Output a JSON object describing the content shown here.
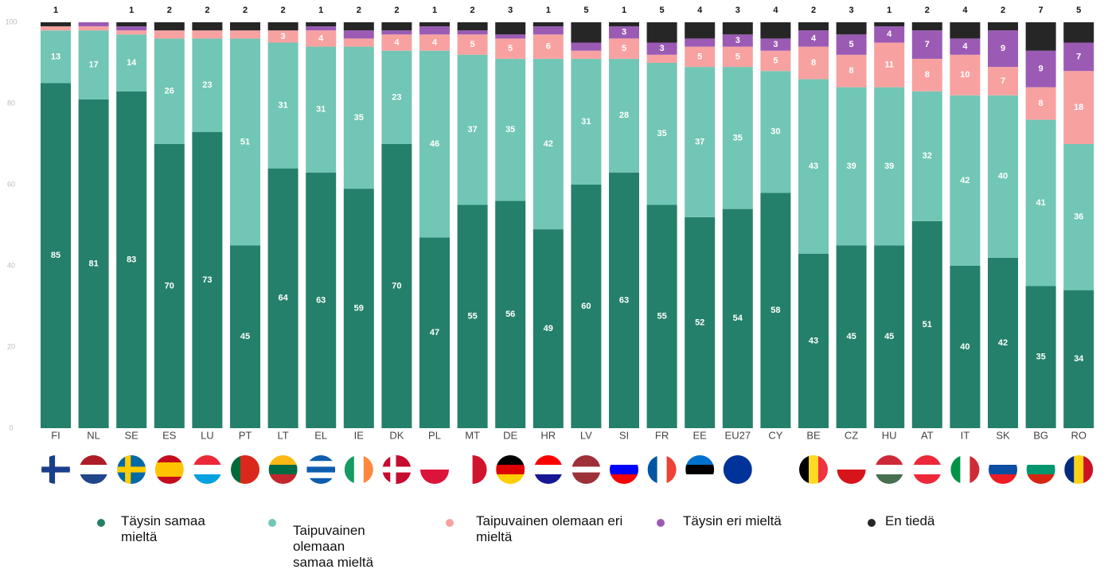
{
  "chart_data": {
    "type": "stacked_bar",
    "categories": [
      "FI",
      "NL",
      "SE",
      "ES",
      "LU",
      "PT",
      "LT",
      "EL",
      "IE",
      "DK",
      "PL",
      "MT",
      "DE",
      "HR",
      "LV",
      "SI",
      "FR",
      "EE",
      "EU27",
      "CY",
      "BE",
      "CZ",
      "HU",
      "AT",
      "IT",
      "SK",
      "BG",
      "RO"
    ],
    "series": [
      {
        "name": "Täysin samaa mieltä",
        "color": "#24806a",
        "values": [
          85,
          81,
          83,
          70,
          73,
          45,
          64,
          63,
          59,
          70,
          47,
          55,
          56,
          49,
          60,
          63,
          55,
          52,
          54,
          58,
          43,
          45,
          45,
          51,
          40,
          42,
          35,
          34
        ]
      },
      {
        "name": "Taipuvainen olemaan samaa mieltä",
        "color": "#72c6b5",
        "values": [
          13,
          17,
          14,
          26,
          23,
          51,
          31,
          31,
          35,
          23,
          46,
          37,
          35,
          42,
          31,
          28,
          35,
          37,
          35,
          30,
          43,
          39,
          39,
          32,
          42,
          40,
          41,
          36
        ]
      },
      {
        "name": "Taipuvainen olemaan eri mieltä",
        "color": "#f7a2a1",
        "values": [
          1,
          1,
          1,
          2,
          2,
          2,
          3,
          4,
          2,
          4,
          4,
          5,
          5,
          6,
          2,
          5,
          2,
          5,
          5,
          5,
          8,
          8,
          11,
          8,
          10,
          7,
          8,
          18
        ]
      },
      {
        "name": "Täysin eri mieltä",
        "color": "#9b5bb5",
        "values": [
          0,
          1,
          1,
          0,
          0,
          0,
          0,
          1,
          2,
          1,
          2,
          1,
          1,
          2,
          2,
          3,
          3,
          2,
          3,
          3,
          4,
          5,
          4,
          7,
          4,
          9,
          9,
          7
        ]
      },
      {
        "name": "En tiedä",
        "color": "#262626",
        "values": [
          1,
          null,
          1,
          2,
          2,
          2,
          2,
          1,
          2,
          2,
          1,
          2,
          3,
          1,
          5,
          1,
          5,
          4,
          3,
          4,
          2,
          3,
          1,
          2,
          4,
          2,
          7,
          5
        ]
      }
    ],
    "ylim": [
      0,
      100
    ],
    "yticks": [
      0,
      20,
      40,
      60,
      80,
      100
    ],
    "grid": false
  }
}
